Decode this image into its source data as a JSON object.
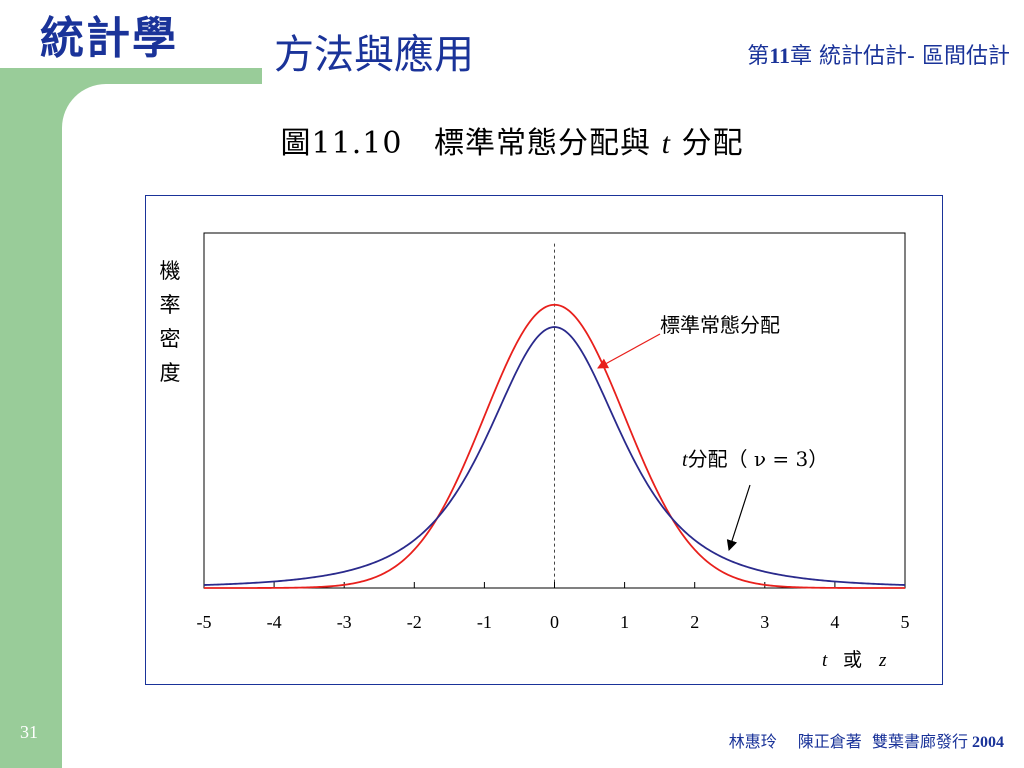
{
  "header": {
    "book_title": "統計學",
    "book_subtitle": "方法與應用",
    "chapter_prefix": "第",
    "chapter_number": "11",
    "chapter_suffix": "章 統計估計- 區間估計"
  },
  "figure": {
    "label": "圖11.10",
    "title_part1": "標準常態分配與",
    "title_italic": "t",
    "title_part2": "分配"
  },
  "footer": {
    "slide_number": "31",
    "authors": "林惠玲　 陳正倉著",
    "publisher": "雙葉書廊發行",
    "year": "2004"
  },
  "colors": {
    "accent_blue": "#1a3399",
    "green_frame": "#99cc99",
    "normal_curve": "#e8201c",
    "t_curve": "#2a2a8c"
  },
  "chart_data": {
    "type": "line",
    "xlabel": {
      "italic1": "t",
      "word": "或",
      "italic2": "z"
    },
    "ylabel": "機率密度",
    "xlim": [
      -5,
      5
    ],
    "ylim": [
      0,
      0.5
    ],
    "xticks": [
      "-5",
      "-4",
      "-3",
      "-2",
      "-1",
      "0",
      "1",
      "2",
      "3",
      "4",
      "5"
    ],
    "grid": false,
    "reference_line": {
      "x": 0,
      "style": "dashed"
    },
    "series": [
      {
        "name": "標準常態分配",
        "color": "#e8201c",
        "x": [
          -5,
          -4.5,
          -4,
          -3.5,
          -3,
          -2.5,
          -2,
          -1.5,
          -1,
          -0.5,
          0,
          0.5,
          1,
          1.5,
          2,
          2.5,
          3,
          3.5,
          4,
          4.5,
          5
        ],
        "y": [
          1.5e-06,
          1.6e-05,
          0.00013,
          0.00087,
          0.0044,
          0.0175,
          0.054,
          0.1295,
          0.242,
          0.3521,
          0.3989,
          0.3521,
          0.242,
          0.1295,
          0.054,
          0.0175,
          0.0044,
          0.00087,
          0.00013,
          1.6e-05,
          1.5e-06
        ]
      },
      {
        "name": "分配",
        "color": "#2a2a8c",
        "x": [
          -5,
          -4.5,
          -4,
          -3.5,
          -3,
          -2.5,
          -2,
          -1.5,
          -1,
          -0.5,
          0,
          0.5,
          1,
          1.5,
          2,
          2.5,
          3,
          3.5,
          4,
          4.5,
          5
        ],
        "y": [
          0.0042,
          0.0061,
          0.0092,
          0.0145,
          0.0229,
          0.0382,
          0.0675,
          0.1237,
          0.2067,
          0.3128,
          0.3676,
          0.3128,
          0.2067,
          0.1237,
          0.0675,
          0.0382,
          0.0229,
          0.0145,
          0.0092,
          0.0061,
          0.0042
        ]
      }
    ],
    "annotations": {
      "normal_label": "標準常態分配",
      "t_label_italic": "t",
      "t_label_text": "分配（",
      "t_label_nu": "ν",
      "t_label_eq": "=",
      "t_label_df": "3",
      "t_label_close": "）"
    }
  }
}
